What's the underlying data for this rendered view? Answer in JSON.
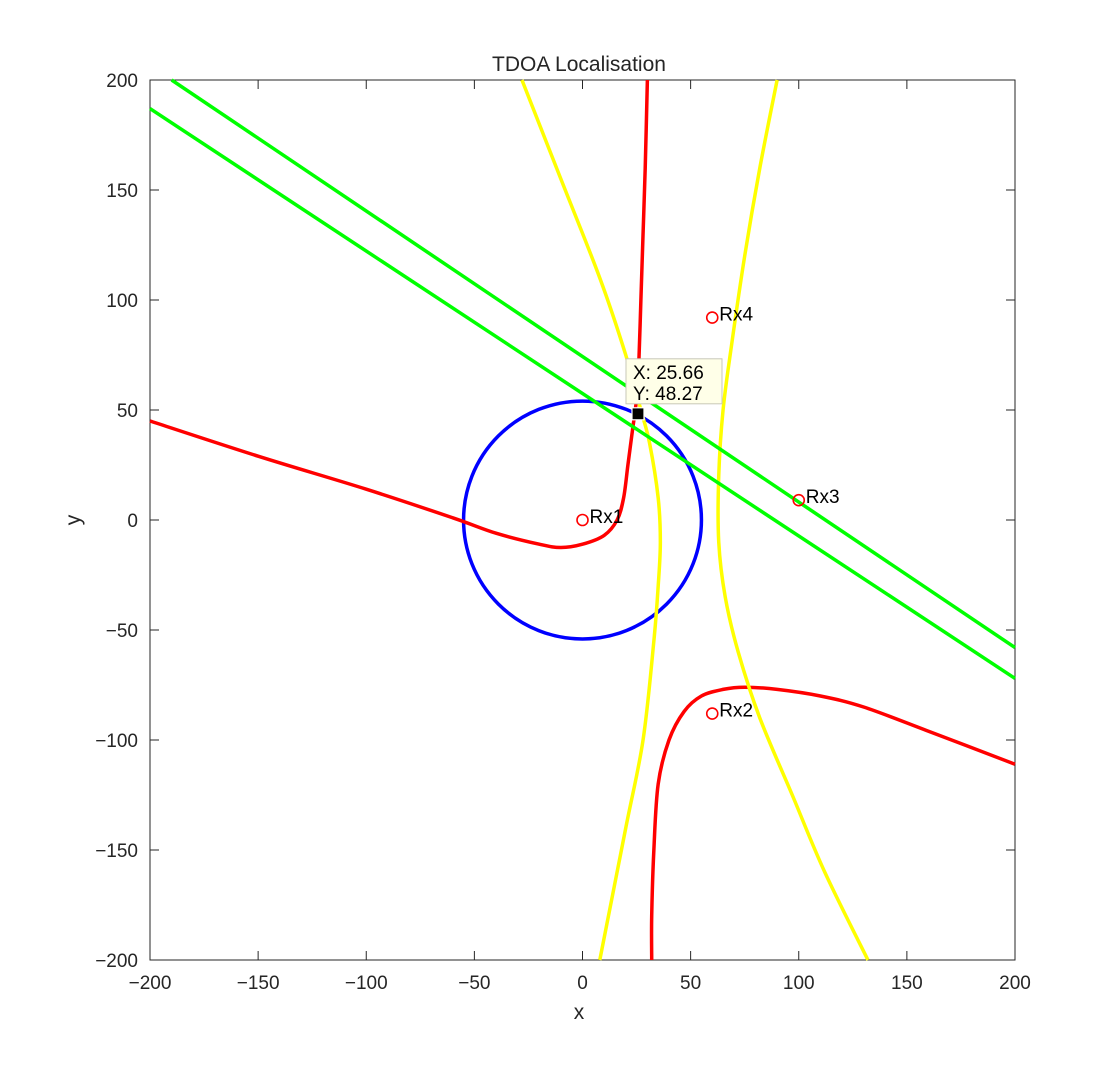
{
  "chart_data": {
    "type": "line",
    "title": "TDOA Localisation",
    "xlabel": "x",
    "ylabel": "y",
    "xlim": [
      -200,
      200
    ],
    "ylim": [
      -200,
      200
    ],
    "xticks": [
      -200,
      -150,
      -100,
      -50,
      0,
      50,
      100,
      150,
      200
    ],
    "yticks": [
      -200,
      -150,
      -100,
      -50,
      0,
      50,
      100,
      150,
      200
    ],
    "grid": false,
    "legend": "none",
    "colors": {
      "red": "#ff0000",
      "yellow": "#ffff00",
      "green": "#00ff00",
      "blue": "#0000ff",
      "receiver": "#ff0000",
      "estimate": "#000000",
      "tip_bg": "#ffffe8"
    },
    "receivers": [
      {
        "label": "Rx1",
        "x": 0,
        "y": 0
      },
      {
        "label": "Rx2",
        "x": 60,
        "y": -88
      },
      {
        "label": "Rx3",
        "x": 100,
        "y": 9
      },
      {
        "label": "Rx4",
        "x": 60,
        "y": 92
      }
    ],
    "circle": {
      "center": [
        0,
        0
      ],
      "radius": 55
    },
    "series": [
      {
        "color": "red",
        "points": [
          [
            -200,
            45
          ],
          [
            -150,
            29
          ],
          [
            -100,
            14
          ],
          [
            -60,
            1
          ],
          [
            -40,
            -6
          ],
          [
            -20,
            -11
          ],
          [
            -10,
            -12.5
          ],
          [
            0,
            -11
          ],
          [
            10,
            -7
          ],
          [
            16,
            0
          ],
          [
            19,
            10
          ],
          [
            21,
            25
          ],
          [
            23,
            40
          ],
          [
            25,
            55
          ],
          [
            26,
            70
          ],
          [
            27,
            100
          ],
          [
            28,
            130
          ],
          [
            29,
            160
          ],
          [
            30,
            200
          ]
        ]
      },
      {
        "color": "red",
        "points": [
          [
            32,
            -200
          ],
          [
            32,
            -180
          ],
          [
            33,
            -150
          ],
          [
            35,
            -120
          ],
          [
            40,
            -100
          ],
          [
            47,
            -87
          ],
          [
            55,
            -80
          ],
          [
            65,
            -77
          ],
          [
            75,
            -76
          ],
          [
            90,
            -77
          ],
          [
            110,
            -80
          ],
          [
            130,
            -85
          ],
          [
            160,
            -96
          ],
          [
            200,
            -111
          ]
        ]
      },
      {
        "color": "yellow",
        "points": [
          [
            -28,
            200
          ],
          [
            -10,
            155
          ],
          [
            8,
            110
          ],
          [
            20,
            75
          ],
          [
            27,
            50
          ],
          [
            31,
            35
          ],
          [
            35,
            10
          ],
          [
            36,
            -10
          ],
          [
            35,
            -30
          ],
          [
            33,
            -55
          ],
          [
            28,
            -100
          ],
          [
            20,
            -140
          ],
          [
            8,
            -200
          ]
        ]
      },
      {
        "color": "yellow",
        "points": [
          [
            90,
            200
          ],
          [
            82,
            160
          ],
          [
            75,
            120
          ],
          [
            69,
            80
          ],
          [
            65,
            50
          ],
          [
            63,
            20
          ],
          [
            63,
            -10
          ],
          [
            66,
            -35
          ],
          [
            72,
            -60
          ],
          [
            82,
            -90
          ],
          [
            97,
            -125
          ],
          [
            112,
            -160
          ],
          [
            132,
            -200
          ]
        ]
      },
      {
        "color": "green",
        "points": [
          [
            -190,
            200
          ],
          [
            200,
            -58
          ]
        ]
      },
      {
        "color": "green",
        "points": [
          [
            -200,
            187
          ],
          [
            200,
            -72
          ]
        ]
      }
    ],
    "datatip": {
      "x": 25.66,
      "y": 48.27,
      "x_text": "X: 25.66",
      "y_text": "Y: 48.27"
    }
  }
}
